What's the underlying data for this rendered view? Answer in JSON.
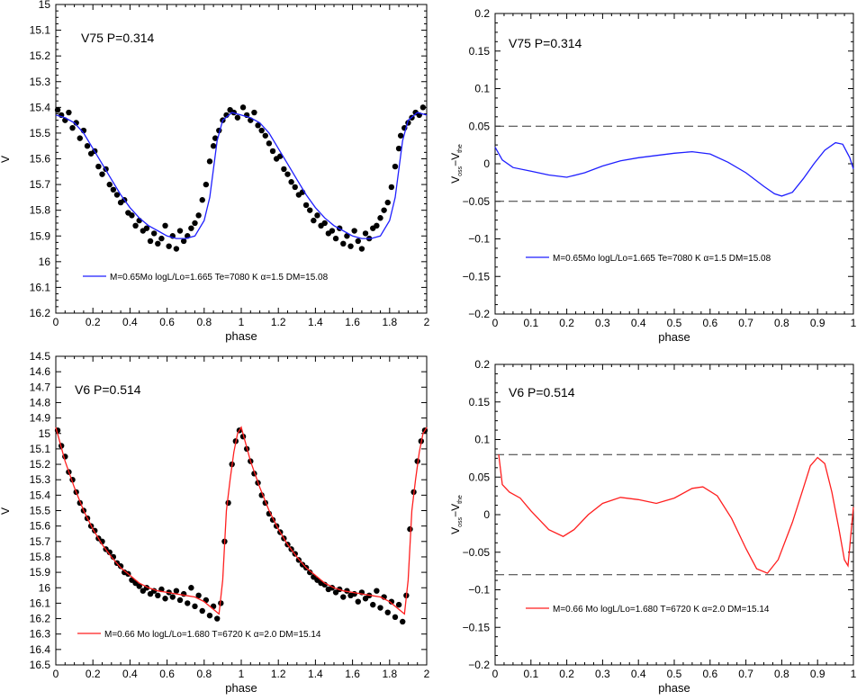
{
  "chart_data": [
    {
      "type": "scatter",
      "panel": "top-left",
      "annotation": "V75 P=0.314",
      "xlabel": "phase",
      "ylabel": "V",
      "xlim": [
        0,
        2
      ],
      "ylim": [
        15.0,
        16.2
      ],
      "y_inverted": true,
      "xticks": [
        "0",
        "0.2",
        "0.4",
        "0.6",
        "0.8",
        "1",
        "1.2",
        "1.4",
        "1.6",
        "1.8",
        "2"
      ],
      "yticks": [
        "15",
        "15.1",
        "15.2",
        "15.3",
        "15.4",
        "15.5",
        "15.6",
        "15.7",
        "15.8",
        "15.9",
        "16",
        "16.1",
        "16.2"
      ],
      "legend": "M=0.65Mo logL/Lo=1.665 Te=7080 K α=1.5 DM=15.08",
      "legend_position": "bottom-center",
      "observed_color": "#000000",
      "model_color": "#1f1fff",
      "model_curve": {
        "x": [
          0.0,
          0.05,
          0.1,
          0.15,
          0.2,
          0.25,
          0.3,
          0.35,
          0.4,
          0.45,
          0.5,
          0.55,
          0.6,
          0.65,
          0.7,
          0.75,
          0.8,
          0.83,
          0.85,
          0.87,
          0.9,
          0.95,
          1.0,
          1.05,
          1.1,
          1.15,
          1.2,
          1.25,
          1.3,
          1.35,
          1.4,
          1.45,
          1.5,
          1.55,
          1.6,
          1.65,
          1.7,
          1.75,
          1.8,
          1.83,
          1.85,
          1.87,
          1.9,
          1.95,
          2.0
        ],
        "y": [
          15.43,
          15.44,
          15.46,
          15.5,
          15.56,
          15.62,
          15.68,
          15.74,
          15.79,
          15.83,
          15.86,
          15.88,
          15.9,
          15.91,
          15.91,
          15.9,
          15.84,
          15.75,
          15.64,
          15.53,
          15.45,
          15.42,
          15.43,
          15.44,
          15.46,
          15.5,
          15.56,
          15.62,
          15.68,
          15.74,
          15.79,
          15.83,
          15.86,
          15.88,
          15.9,
          15.91,
          15.91,
          15.9,
          15.84,
          15.75,
          15.64,
          15.53,
          15.45,
          15.42,
          15.43
        ]
      },
      "observed": {
        "x": [
          0.01,
          0.03,
          0.05,
          0.07,
          0.09,
          0.11,
          0.13,
          0.15,
          0.17,
          0.19,
          0.21,
          0.23,
          0.25,
          0.27,
          0.29,
          0.31,
          0.33,
          0.35,
          0.37,
          0.39,
          0.41,
          0.43,
          0.45,
          0.47,
          0.49,
          0.51,
          0.53,
          0.55,
          0.57,
          0.59,
          0.61,
          0.63,
          0.65,
          0.67,
          0.69,
          0.71,
          0.73,
          0.75,
          0.77,
          0.79,
          0.81,
          0.83,
          0.85,
          0.86,
          0.88,
          0.9,
          0.92,
          0.94,
          0.96,
          0.98,
          1.01,
          1.03,
          1.05,
          1.07,
          1.09,
          1.11,
          1.13,
          1.15,
          1.17,
          1.19,
          1.21,
          1.23,
          1.25,
          1.27,
          1.29,
          1.31,
          1.33,
          1.35,
          1.37,
          1.39,
          1.41,
          1.43,
          1.45,
          1.47,
          1.49,
          1.51,
          1.53,
          1.55,
          1.57,
          1.59,
          1.61,
          1.63,
          1.65,
          1.67,
          1.69,
          1.71,
          1.73,
          1.75,
          1.77,
          1.79,
          1.81,
          1.83,
          1.85,
          1.86,
          1.88,
          1.9,
          1.92,
          1.94,
          1.96,
          1.98
        ],
        "y": [
          15.41,
          15.43,
          15.45,
          15.42,
          15.48,
          15.46,
          15.52,
          15.49,
          15.55,
          15.58,
          15.57,
          15.63,
          15.66,
          15.64,
          15.7,
          15.72,
          15.74,
          15.77,
          15.76,
          15.81,
          15.82,
          15.86,
          15.84,
          15.88,
          15.87,
          15.92,
          15.89,
          15.93,
          15.91,
          15.86,
          15.94,
          15.9,
          15.95,
          15.88,
          15.92,
          15.9,
          15.87,
          15.85,
          15.82,
          15.76,
          15.7,
          15.61,
          15.55,
          15.52,
          15.49,
          15.45,
          15.43,
          15.41,
          15.42,
          15.44,
          15.4,
          15.43,
          15.45,
          15.42,
          15.47,
          15.49,
          15.51,
          15.54,
          15.57,
          15.6,
          15.59,
          15.64,
          15.66,
          15.69,
          15.71,
          15.74,
          15.73,
          15.78,
          15.8,
          15.84,
          15.82,
          15.86,
          15.85,
          15.89,
          15.88,
          15.91,
          15.87,
          15.93,
          15.9,
          15.94,
          15.88,
          15.92,
          15.95,
          15.89,
          15.91,
          15.87,
          15.86,
          15.83,
          15.8,
          15.77,
          15.71,
          15.63,
          15.56,
          15.51,
          15.48,
          15.46,
          15.44,
          15.42,
          15.43,
          15.4
        ]
      }
    },
    {
      "type": "line",
      "panel": "top-right",
      "annotation": "V75 P=0.314",
      "xlabel": "phase",
      "ylabel": "V",
      "ylabel_sub_1": "oss",
      "ylabel_dash": "−V",
      "ylabel_sub_2": "the",
      "xlim": [
        0,
        1
      ],
      "ylim": [
        -0.2,
        0.2
      ],
      "xticks": [
        "0",
        "0.1",
        "0.2",
        "0.3",
        "0.4",
        "0.5",
        "0.6",
        "0.7",
        "0.8",
        "0.9",
        "1"
      ],
      "yticks": [
        "0.2",
        "0.15",
        "0.1",
        "0.05",
        "0",
        "−0.05",
        "−0.1",
        "−0.15",
        "−0.2"
      ],
      "legend": "M=0.65Mo logL/Lo=1.665 Te=7080 K α=1.5 DM=15.08",
      "legend_position": "bottom-center",
      "line_color": "#1f1fff",
      "reference_lines": [
        0.05,
        -0.05
      ],
      "x": [
        0.0,
        0.02,
        0.05,
        0.1,
        0.15,
        0.2,
        0.25,
        0.3,
        0.35,
        0.4,
        0.45,
        0.5,
        0.55,
        0.6,
        0.65,
        0.7,
        0.75,
        0.78,
        0.8,
        0.83,
        0.86,
        0.89,
        0.92,
        0.95,
        0.97,
        0.99,
        1.0
      ],
      "values": [
        0.022,
        0.005,
        -0.005,
        -0.01,
        -0.015,
        -0.018,
        -0.012,
        -0.003,
        0.004,
        0.008,
        0.011,
        0.014,
        0.016,
        0.013,
        0.002,
        -0.012,
        -0.03,
        -0.04,
        -0.043,
        -0.038,
        -0.02,
        0.0,
        0.018,
        0.028,
        0.026,
        0.008,
        -0.007
      ]
    },
    {
      "type": "scatter",
      "panel": "bottom-left",
      "annotation": "V6 P=0.514",
      "xlabel": "phase",
      "ylabel": "V",
      "xlim": [
        0,
        2
      ],
      "ylim": [
        14.5,
        16.5
      ],
      "y_inverted": true,
      "xticks": [
        "0",
        "0.2",
        "0.4",
        "0.6",
        "0.8",
        "1",
        "1.2",
        "1.4",
        "1.6",
        "1.8",
        "2"
      ],
      "yticks": [
        "14.5",
        "14.6",
        "14.7",
        "14.8",
        "14.9",
        "15",
        "15.1",
        "15.2",
        "15.3",
        "15.4",
        "15.5",
        "15.6",
        "15.7",
        "15.8",
        "15.9",
        "16",
        "16.1",
        "16.2",
        "16.3",
        "16.4",
        "16.5"
      ],
      "legend": "M=0.66 Mo logL/Lo=1.680 T=6720 K α=2.0 DM=15.14",
      "legend_position": "bottom-center",
      "observed_color": "#000000",
      "model_color": "#ff1f1f",
      "model_curve": {
        "x": [
          0.0,
          0.05,
          0.1,
          0.15,
          0.2,
          0.25,
          0.3,
          0.35,
          0.4,
          0.45,
          0.5,
          0.55,
          0.6,
          0.65,
          0.7,
          0.75,
          0.8,
          0.85,
          0.88,
          0.9,
          0.92,
          0.94,
          0.96,
          0.98,
          1.0,
          1.05,
          1.1,
          1.15,
          1.2,
          1.25,
          1.3,
          1.35,
          1.4,
          1.45,
          1.5,
          1.55,
          1.6,
          1.65,
          1.7,
          1.75,
          1.8,
          1.85,
          1.88,
          1.9,
          1.92,
          1.94,
          1.96,
          1.98,
          2.0
        ],
        "y": [
          14.96,
          15.18,
          15.35,
          15.5,
          15.62,
          15.72,
          15.8,
          15.87,
          15.92,
          15.97,
          16.0,
          16.02,
          16.03,
          16.04,
          16.05,
          16.06,
          16.09,
          16.14,
          16.17,
          15.95,
          15.5,
          15.3,
          15.12,
          15.0,
          14.96,
          15.18,
          15.35,
          15.5,
          15.62,
          15.72,
          15.8,
          15.87,
          15.92,
          15.97,
          16.0,
          16.02,
          16.03,
          16.04,
          16.05,
          16.06,
          16.09,
          16.14,
          16.17,
          15.95,
          15.5,
          15.3,
          15.12,
          15.0,
          14.96
        ]
      },
      "observed": {
        "x": [
          0.01,
          0.03,
          0.05,
          0.07,
          0.09,
          0.11,
          0.13,
          0.15,
          0.17,
          0.19,
          0.21,
          0.23,
          0.25,
          0.27,
          0.29,
          0.31,
          0.33,
          0.35,
          0.37,
          0.39,
          0.41,
          0.43,
          0.45,
          0.47,
          0.49,
          0.51,
          0.53,
          0.55,
          0.57,
          0.59,
          0.61,
          0.63,
          0.65,
          0.67,
          0.69,
          0.71,
          0.73,
          0.75,
          0.77,
          0.79,
          0.81,
          0.83,
          0.85,
          0.87,
          0.89,
          0.91,
          0.93,
          0.95,
          0.97,
          0.99,
          1.01,
          1.03,
          1.05,
          1.07,
          1.09,
          1.11,
          1.13,
          1.15,
          1.17,
          1.19,
          1.21,
          1.23,
          1.25,
          1.27,
          1.29,
          1.31,
          1.33,
          1.35,
          1.37,
          1.39,
          1.41,
          1.43,
          1.45,
          1.47,
          1.49,
          1.51,
          1.53,
          1.55,
          1.57,
          1.59,
          1.61,
          1.63,
          1.65,
          1.67,
          1.69,
          1.71,
          1.73,
          1.75,
          1.77,
          1.79,
          1.81,
          1.83,
          1.85,
          1.87,
          1.89,
          1.91,
          1.93,
          1.95,
          1.97,
          1.99
        ],
        "y": [
          14.98,
          15.08,
          15.15,
          15.25,
          15.3,
          15.38,
          15.45,
          15.5,
          15.55,
          15.6,
          15.63,
          15.68,
          15.7,
          15.75,
          15.77,
          15.8,
          15.84,
          15.86,
          15.9,
          15.91,
          15.95,
          15.97,
          15.99,
          16.02,
          16.0,
          16.04,
          16.02,
          16.05,
          16.01,
          16.07,
          16.03,
          16.06,
          16.02,
          16.08,
          16.04,
          16.1,
          16.0,
          16.12,
          16.05,
          16.15,
          16.08,
          16.18,
          16.12,
          16.2,
          16.1,
          15.7,
          15.45,
          15.2,
          15.05,
          14.98,
          15.02,
          15.1,
          15.18,
          15.26,
          15.32,
          15.4,
          15.45,
          15.52,
          15.56,
          15.6,
          15.64,
          15.68,
          15.72,
          15.75,
          15.78,
          15.82,
          15.85,
          15.87,
          15.9,
          15.93,
          15.95,
          15.97,
          15.98,
          16.01,
          16.0,
          16.03,
          16.01,
          16.06,
          16.02,
          16.05,
          16.04,
          16.09,
          16.03,
          16.07,
          16.05,
          16.11,
          16.02,
          16.13,
          16.06,
          16.16,
          16.09,
          16.19,
          16.11,
          16.22,
          16.05,
          15.62,
          15.38,
          15.18,
          15.05,
          14.98
        ]
      }
    },
    {
      "type": "line",
      "panel": "bottom-right",
      "annotation": "V6 P=0.514",
      "xlabel": "phase",
      "ylabel": "V",
      "ylabel_sub_1": "oss",
      "ylabel_dash": "−V",
      "ylabel_sub_2": "the",
      "xlim": [
        0,
        1
      ],
      "ylim": [
        -0.2,
        0.2
      ],
      "xticks": [
        "0",
        "0.1",
        "0.2",
        "0.3",
        "0.4",
        "0.5",
        "0.6",
        "0.7",
        "0.8",
        "0.9",
        "1"
      ],
      "yticks": [
        "0.2",
        "0.15",
        "0.1",
        "0.05",
        "0",
        "−0.05",
        "−0.1",
        "−0.15",
        "−0.2"
      ],
      "legend": "M=0.66 Mo logL/Lo=1.680 T=6720 K α=2.0 DM=15.14",
      "legend_position": "bottom-center",
      "line_color": "#ff1f1f",
      "reference_lines": [
        0.08,
        -0.08
      ],
      "x": [
        0.01,
        0.02,
        0.04,
        0.07,
        0.1,
        0.15,
        0.19,
        0.22,
        0.26,
        0.3,
        0.35,
        0.4,
        0.45,
        0.5,
        0.55,
        0.58,
        0.62,
        0.66,
        0.7,
        0.73,
        0.76,
        0.79,
        0.83,
        0.86,
        0.88,
        0.9,
        0.92,
        0.94,
        0.96,
        0.975,
        0.985,
        1.0
      ],
      "values": [
        0.08,
        0.04,
        0.03,
        0.022,
        0.005,
        -0.02,
        -0.029,
        -0.02,
        0.0,
        0.015,
        0.023,
        0.02,
        0.015,
        0.022,
        0.035,
        0.037,
        0.025,
        -0.005,
        -0.045,
        -0.072,
        -0.078,
        -0.06,
        -0.01,
        0.035,
        0.065,
        0.076,
        0.068,
        0.03,
        -0.02,
        -0.06,
        -0.068,
        0.01
      ]
    }
  ]
}
